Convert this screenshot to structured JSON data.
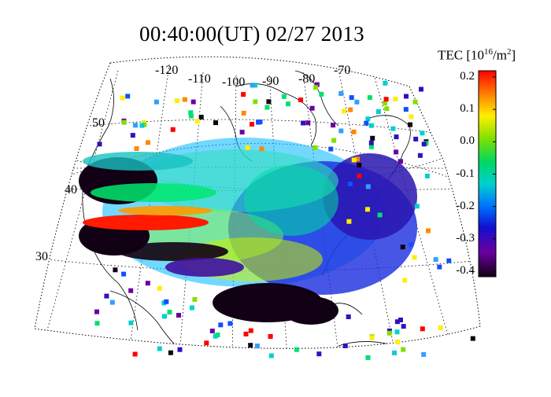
{
  "title": "00:40:00(UT)  02/27 2013",
  "colorbar": {
    "label": "TEC [10",
    "label_exp": "16",
    "label_suffix": "/m",
    "label_exp2": "2",
    "label_close": "]",
    "ticks": [
      "0.2",
      "0.1",
      "0.0",
      "-0.1",
      "-0.2",
      "-0.3",
      "-0.4"
    ],
    "range": [
      -0.4,
      0.2
    ]
  },
  "map": {
    "longitude_labels": [
      "-120",
      "-110",
      "-100",
      "-90",
      "-80",
      "-70"
    ],
    "latitude_labels": [
      "50",
      "40",
      "30"
    ],
    "projection": "conic",
    "grid": true
  },
  "colors": {
    "low": "#120014",
    "mid": "#00c8c8",
    "high": "#ff0000"
  }
}
